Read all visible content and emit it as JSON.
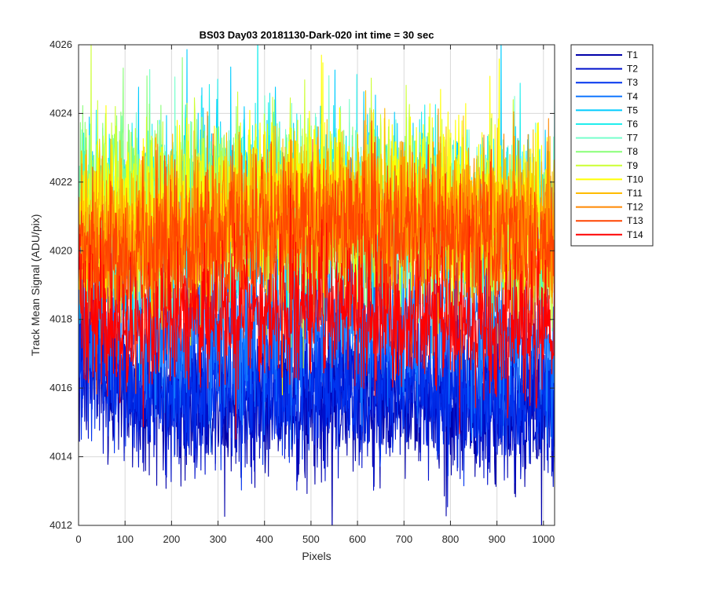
{
  "chart_data": {
    "type": "line",
    "title": "BS03 Day03 20181130-Dark-020 int time = 30 sec",
    "xlabel": "Pixels",
    "ylabel": "Track Mean Signal (ADU/pix)",
    "xlim": [
      0,
      1024
    ],
    "ylim": [
      4012,
      4026
    ],
    "xticks": [
      0,
      100,
      200,
      300,
      400,
      500,
      600,
      700,
      800,
      900,
      1000
    ],
    "yticks": [
      4012,
      4014,
      4016,
      4018,
      4020,
      4022,
      4024,
      4026
    ],
    "grid": true,
    "legend_position": "outside-top-right",
    "n_points": 1024,
    "series": [
      {
        "name": "T1",
        "color": "#0000aa",
        "profile": [
          4017.2,
          4015.6,
          4015.5,
          4015.6,
          4015.7,
          4015.5,
          4015.8,
          4015.5,
          4015.4,
          4015.1
        ],
        "spread": 2.6
      },
      {
        "name": "T2",
        "color": "#0011cc",
        "profile": [
          4017.3,
          4015.8,
          4015.7,
          4015.8,
          4015.9,
          4015.8,
          4016.0,
          4015.7,
          4015.6,
          4015.3
        ],
        "spread": 2.5
      },
      {
        "name": "T3",
        "color": "#0033ee",
        "profile": [
          4017.5,
          4016.1,
          4016.0,
          4016.1,
          4016.2,
          4016.1,
          4016.3,
          4016.0,
          4015.9,
          4015.6
        ],
        "spread": 2.4
      },
      {
        "name": "T4",
        "color": "#1177ff",
        "profile": [
          4018.6,
          4017.6,
          4017.7,
          4017.9,
          4018.0,
          4018.0,
          4018.1,
          4017.9,
          4017.7,
          4017.4
        ],
        "spread": 2.8
      },
      {
        "name": "T5",
        "color": "#00ccff",
        "profile": [
          4020.5,
          4020.4,
          4020.7,
          4021.0,
          4021.1,
          4021.2,
          4021.2,
          4021.0,
          4020.8,
          4020.5
        ],
        "spread": 3.0
      },
      {
        "name": "T6",
        "color": "#22eeee",
        "profile": [
          4020.8,
          4020.8,
          4021.0,
          4021.3,
          4021.4,
          4021.4,
          4021.3,
          4021.1,
          4020.9,
          4020.6
        ],
        "spread": 3.0
      },
      {
        "name": "T7",
        "color": "#77ffcc",
        "profile": [
          4020.9,
          4021.1,
          4021.2,
          4021.3,
          4021.3,
          4021.2,
          4021.2,
          4021.0,
          4020.8,
          4020.5
        ],
        "spread": 2.8
      },
      {
        "name": "T8",
        "color": "#88ff77",
        "profile": [
          4021.5,
          4022.0,
          4021.7,
          4021.4,
          4021.2,
          4021.1,
          4021.0,
          4020.8,
          4020.6,
          4020.3
        ],
        "spread": 2.8
      },
      {
        "name": "T9",
        "color": "#ccff33",
        "profile": [
          4021.1,
          4021.3,
          4021.2,
          4021.3,
          4021.4,
          4021.3,
          4021.3,
          4021.1,
          4020.9,
          4020.6
        ],
        "spread": 2.9
      },
      {
        "name": "T10",
        "color": "#ffff00",
        "profile": [
          4020.9,
          4020.9,
          4021.1,
          4021.4,
          4021.5,
          4021.4,
          4021.4,
          4021.2,
          4021.0,
          4020.7
        ],
        "spread": 3.0
      },
      {
        "name": "T11",
        "color": "#ffbb00",
        "profile": [
          4020.6,
          4020.5,
          4020.8,
          4021.0,
          4021.1,
          4021.2,
          4021.1,
          4021.0,
          4020.8,
          4020.5
        ],
        "spread": 2.8
      },
      {
        "name": "T12",
        "color": "#ff8800",
        "profile": [
          4020.3,
          4020.2,
          4020.5,
          4020.8,
          4020.9,
          4021.0,
          4020.9,
          4020.8,
          4020.6,
          4020.3
        ],
        "spread": 2.7
      },
      {
        "name": "T13",
        "color": "#ff4400",
        "profile": [
          4019.9,
          4019.8,
          4020.1,
          4020.4,
          4020.5,
          4020.6,
          4020.5,
          4020.4,
          4020.2,
          4019.9
        ],
        "spread": 2.6
      },
      {
        "name": "T14",
        "color": "#ff0000",
        "profile": [
          4018.3,
          4017.7,
          4017.9,
          4018.0,
          4018.1,
          4018.2,
          4018.1,
          4018.0,
          4017.8,
          4017.5
        ],
        "spread": 2.4
      }
    ]
  }
}
